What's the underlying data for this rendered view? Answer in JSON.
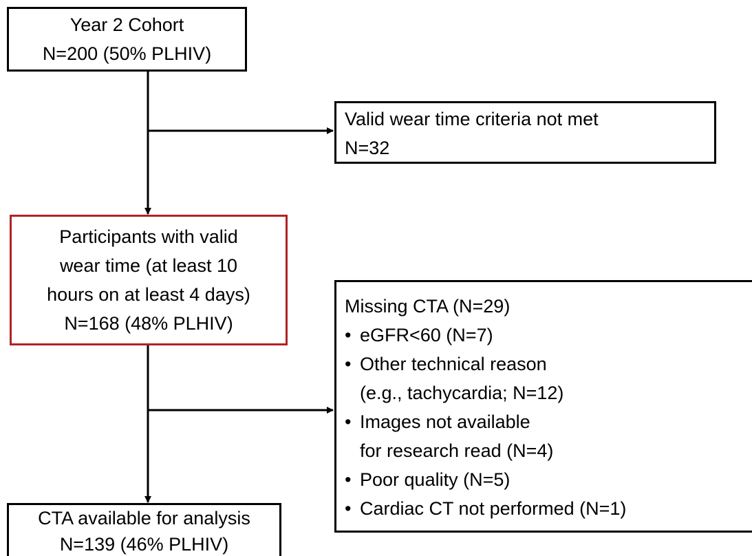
{
  "nodes": [
    {
      "lines": [
        "Year 2 Cohort",
        "N=200 (50% PLHIV)"
      ]
    },
    {
      "lines": [
        "Valid wear time criteria not met",
        "N=32"
      ]
    },
    {
      "lines": [
        "Participants with valid",
        "wear time (at least 10",
        "hours on at least 4 days)",
        "N=168 (48% PLHIV)"
      ]
    },
    {
      "title": "Missing CTA (N=29)",
      "items": [
        [
          "eGFR<60 (N=7)"
        ],
        [
          "Other technical reason",
          "(e.g., tachycardia; N=12)"
        ],
        [
          "Images not available",
          "for research read (N=4)"
        ],
        [
          "Poor quality (N=5)"
        ],
        [
          "Cardiac CT not performed (N=1)"
        ]
      ]
    },
    {
      "lines": [
        "CTA available for analysis",
        "N=139 (46% PLHIV)"
      ]
    }
  ]
}
